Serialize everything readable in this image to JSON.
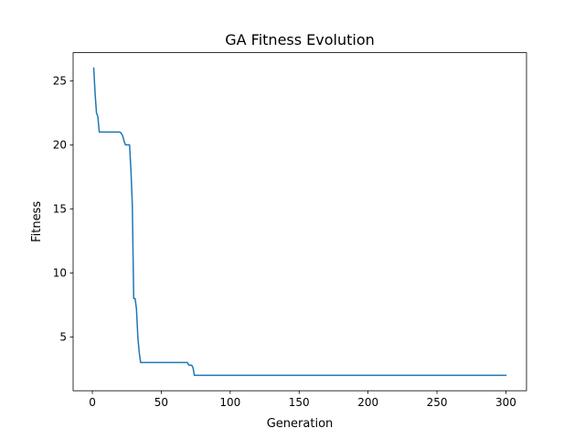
{
  "chart_data": {
    "type": "line",
    "title": "GA Fitness Evolution",
    "xlabel": "Generation",
    "ylabel": "Fitness",
    "xlim": [
      -13.95,
      314.95
    ],
    "ylim": [
      0.8,
      27.2
    ],
    "xticks": [
      0,
      50,
      100,
      150,
      200,
      250,
      300
    ],
    "yticks": [
      5,
      10,
      15,
      20,
      25
    ],
    "grid": false,
    "line_color": "#1f77b4",
    "series": [
      {
        "x": [
          1,
          2,
          3,
          4,
          5,
          19,
          20,
          21,
          22,
          23,
          24,
          25,
          26,
          27,
          28,
          29,
          30,
          31,
          32,
          33,
          34,
          35,
          36,
          68,
          69,
          70,
          71,
          72,
          73,
          74,
          75,
          76,
          300
        ],
        "values": [
          26,
          24,
          22.5,
          22.2,
          21,
          21,
          21,
          20.9,
          20.7,
          20.3,
          20,
          20,
          20,
          20,
          18,
          15.3,
          8,
          8,
          7.2,
          5,
          3.8,
          3,
          3,
          3,
          3,
          2.8,
          2.8,
          2.8,
          2.6,
          2,
          2,
          2,
          2
        ]
      }
    ]
  }
}
